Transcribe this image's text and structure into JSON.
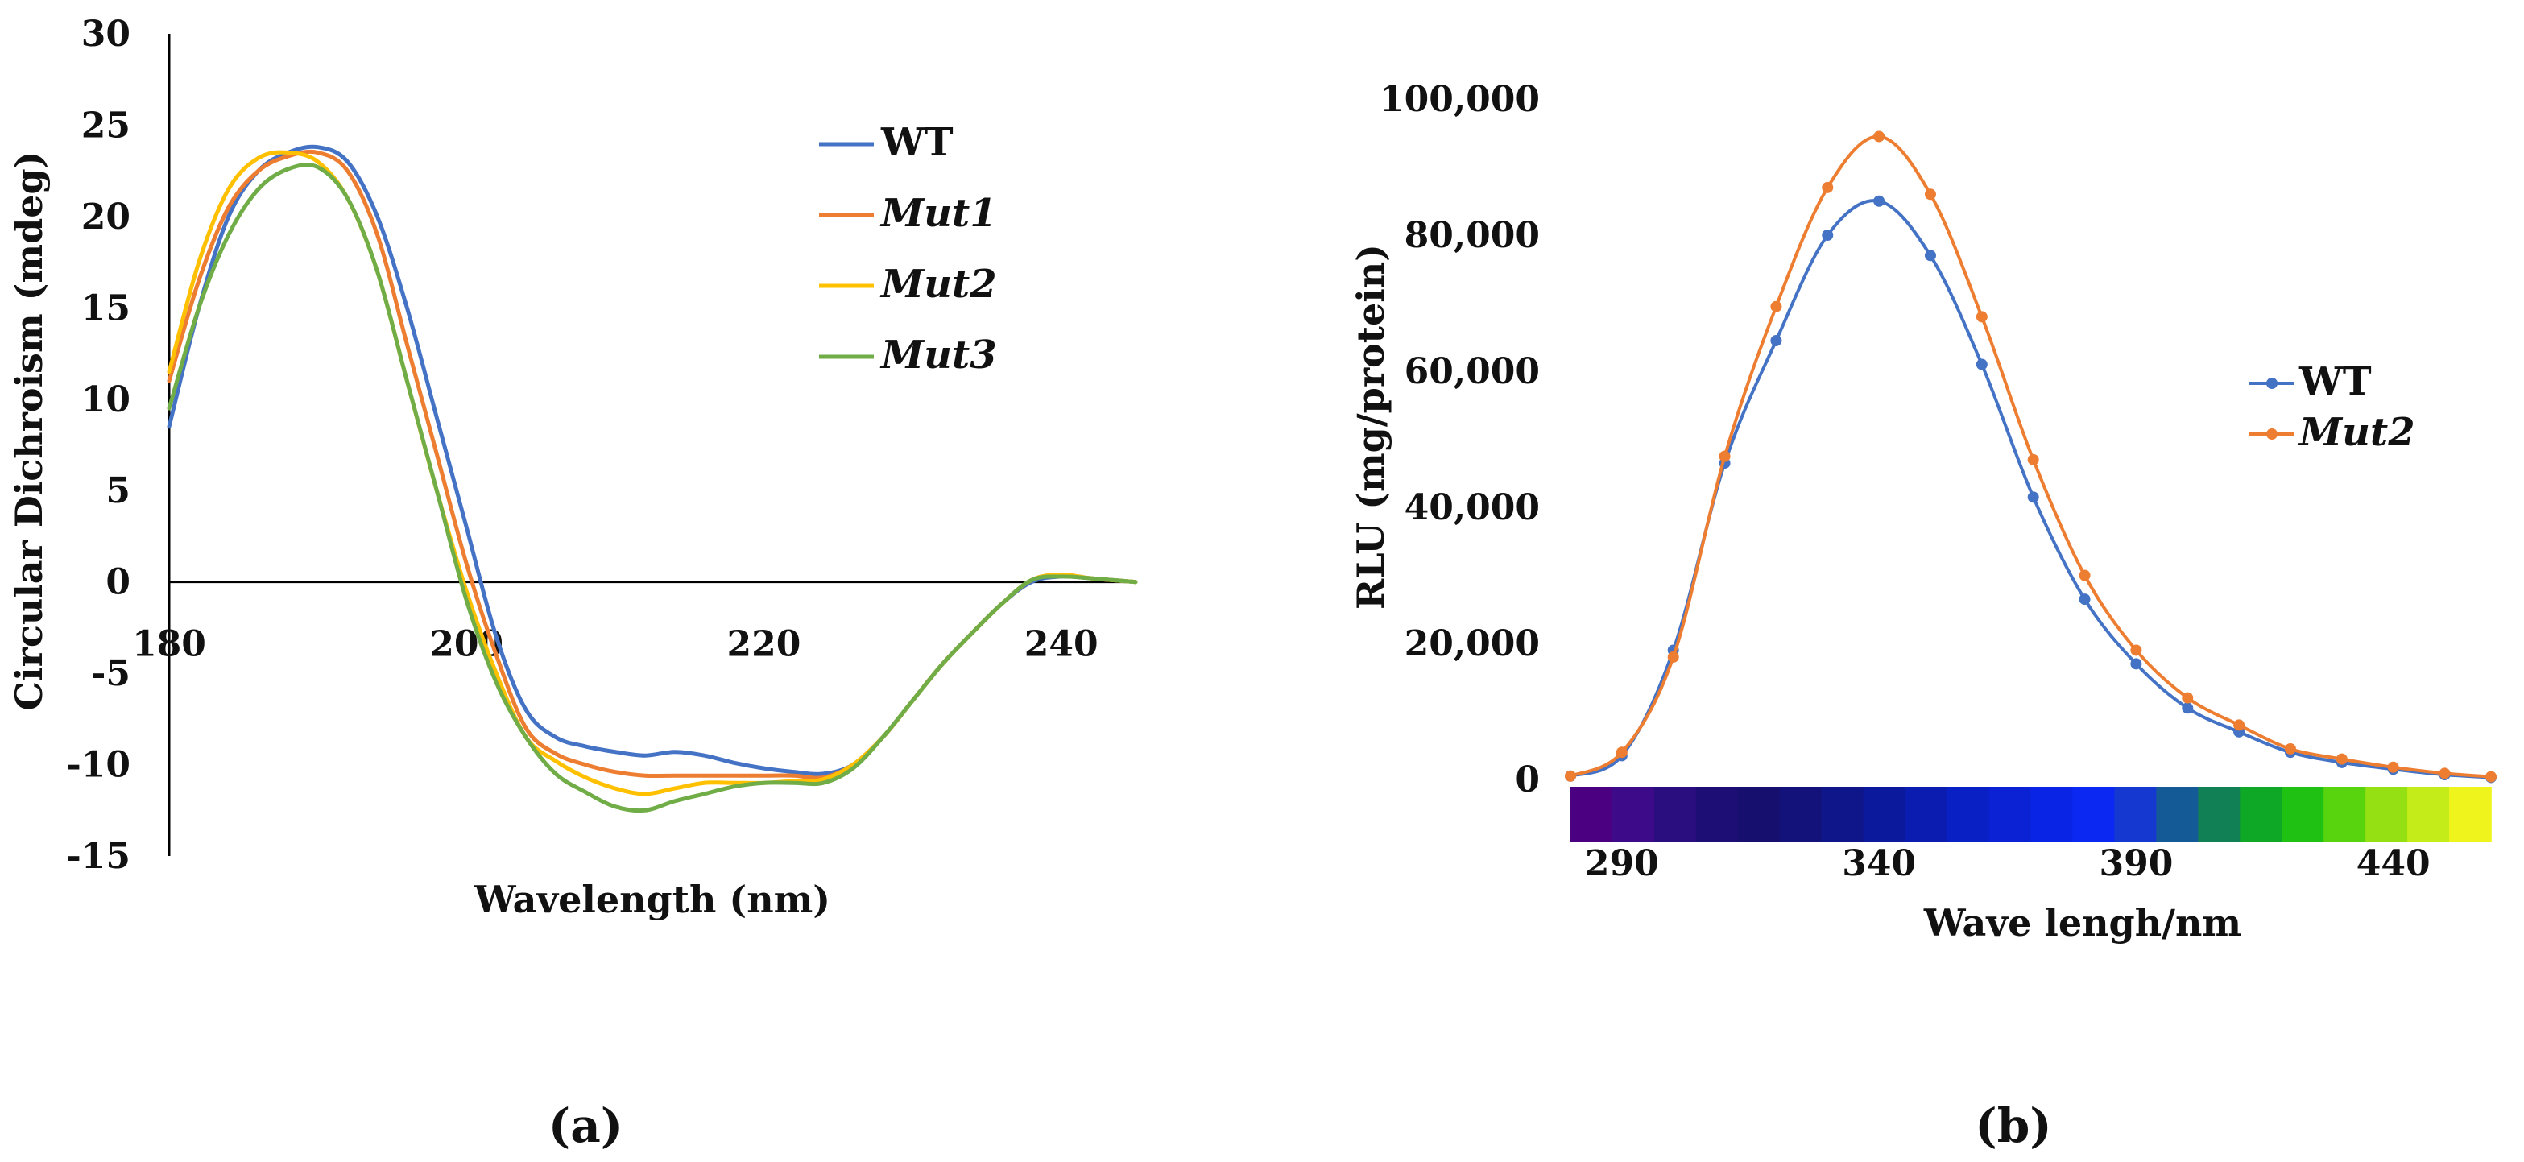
{
  "chart_data": [
    {
      "type": "line",
      "panel_label": "(a)",
      "title": "",
      "xlabel": "Wavelength (nm)",
      "ylabel": "Circular Dichroism (mdeg)",
      "xlim": [
        180,
        245
      ],
      "ylim": [
        -15,
        30
      ],
      "x_ticks": [
        "180",
        "200",
        "220",
        "240"
      ],
      "y_ticks": [
        "30",
        "25",
        "20",
        "15",
        "10",
        "5",
        "0",
        "-5",
        "-10",
        "-15"
      ],
      "legend_position": "top-right",
      "series": [
        {
          "name": "WT",
          "italic": false,
          "color": "#4472c4",
          "x": [
            180,
            182,
            184,
            186,
            188,
            190,
            192,
            194,
            196,
            198,
            200,
            202,
            204,
            206,
            208,
            210,
            212,
            214,
            216,
            218,
            220,
            222,
            224,
            226,
            228,
            230,
            232,
            234,
            236,
            238,
            240,
            242,
            245
          ],
          "y": [
            8.5,
            15,
            20,
            22.5,
            23.5,
            23.8,
            23,
            20,
            15,
            9,
            3,
            -3,
            -7,
            -8.5,
            -9,
            -9.3,
            -9.5,
            -9.3,
            -9.5,
            -9.9,
            -10.2,
            -10.4,
            -10.5,
            -10,
            -8.5,
            -6.5,
            -4.5,
            -2.8,
            -1.2,
            0,
            0.3,
            0.2,
            0
          ]
        },
        {
          "name": "Mut1",
          "italic": true,
          "color": "#ed7d31",
          "x": [
            180,
            182,
            184,
            186,
            188,
            190,
            192,
            194,
            196,
            198,
            200,
            202,
            204,
            206,
            208,
            210,
            212,
            214,
            216,
            218,
            220,
            222,
            224,
            226,
            228,
            230,
            232,
            234,
            236,
            238,
            240,
            242,
            245
          ],
          "y": [
            11,
            16.5,
            20.5,
            22.5,
            23.3,
            23.5,
            22.5,
            19,
            13,
            7,
            1,
            -4,
            -8,
            -9.4,
            -10,
            -10.4,
            -10.6,
            -10.6,
            -10.6,
            -10.6,
            -10.6,
            -10.6,
            -10.7,
            -10,
            -8.5,
            -6.5,
            -4.5,
            -2.8,
            -1.2,
            0.1,
            0.4,
            0.2,
            0
          ]
        },
        {
          "name": "Mut2",
          "italic": true,
          "color": "#ffc000",
          "x": [
            180,
            182,
            184,
            186,
            188,
            190,
            192,
            194,
            196,
            198,
            200,
            202,
            204,
            206,
            208,
            210,
            212,
            214,
            216,
            218,
            220,
            222,
            224,
            226,
            228,
            230,
            232,
            234,
            236,
            238,
            240,
            242,
            245
          ],
          "y": [
            11.5,
            17.5,
            21.5,
            23.2,
            23.5,
            23,
            21,
            17,
            11,
            5,
            -0.5,
            -5,
            -8.5,
            -9.8,
            -10.7,
            -11.3,
            -11.6,
            -11.3,
            -11,
            -11,
            -11,
            -10.9,
            -10.8,
            -10,
            -8.5,
            -6.5,
            -4.5,
            -2.8,
            -1.2,
            0.1,
            0.4,
            0.2,
            0
          ]
        },
        {
          "name": "Mut3",
          "italic": true,
          "color": "#70ad47",
          "x": [
            180,
            182,
            184,
            186,
            188,
            190,
            192,
            194,
            196,
            198,
            200,
            202,
            204,
            206,
            208,
            210,
            212,
            214,
            216,
            218,
            220,
            222,
            224,
            226,
            228,
            230,
            232,
            234,
            236,
            238,
            240,
            242,
            245
          ],
          "y": [
            9.5,
            15,
            19,
            21.5,
            22.6,
            22.7,
            21,
            17,
            11,
            5,
            -1,
            -5.5,
            -8.5,
            -10.5,
            -11.5,
            -12.3,
            -12.5,
            -12,
            -11.6,
            -11.2,
            -11,
            -11,
            -11,
            -10.2,
            -8.5,
            -6.5,
            -4.5,
            -2.8,
            -1.2,
            0.1,
            0.3,
            0.2,
            0
          ]
        }
      ]
    },
    {
      "type": "line",
      "panel_label": "(b)",
      "title": "",
      "xlabel": "Wave lengh/nm",
      "ylabel": "RLU (mg/protein)",
      "xlim": [
        280,
        459
      ],
      "ylim": [
        0,
        100000
      ],
      "x_ticks": [
        "290",
        "340",
        "390",
        "440"
      ],
      "y_ticks": [
        "100,000",
        "80,000",
        "60,000",
        "40,000",
        "20,000",
        "0"
      ],
      "legend_position": "right",
      "spectrum_colors": [
        "#4b0082",
        "#3d0a8a",
        "#2a0d7e",
        "#1c0e74",
        "#170f6e",
        "#12127a",
        "#0f168a",
        "#0b1a9c",
        "#0a1db0",
        "#0920c4",
        "#0a22d4",
        "#0a24e6",
        "#0a28f2",
        "#1538d0",
        "#145a96",
        "#118155",
        "#0fa826",
        "#1fc212",
        "#58d40f",
        "#94e013",
        "#c4ec18",
        "#eef41c"
      ],
      "series": [
        {
          "name": "WT",
          "italic": false,
          "color": "#4472c4",
          "x": [
            280,
            290,
            300,
            310,
            320,
            330,
            340,
            350,
            360,
            370,
            380,
            390,
            400,
            410,
            420,
            430,
            440,
            450,
            459
          ],
          "y": [
            500,
            3500,
            19000,
            46500,
            64500,
            80000,
            85000,
            77000,
            61000,
            41500,
            26500,
            17000,
            10500,
            7000,
            4000,
            2500,
            1500,
            700,
            300
          ]
        },
        {
          "name": "Mut2",
          "italic": true,
          "color": "#ed7d31",
          "x": [
            280,
            290,
            300,
            310,
            320,
            330,
            340,
            350,
            360,
            370,
            380,
            390,
            400,
            410,
            420,
            430,
            440,
            450,
            459
          ],
          "y": [
            500,
            4000,
            18000,
            47500,
            69500,
            87000,
            94500,
            86000,
            68000,
            47000,
            30000,
            19000,
            12000,
            8000,
            4500,
            3000,
            1800,
            900,
            400
          ]
        }
      ]
    }
  ]
}
